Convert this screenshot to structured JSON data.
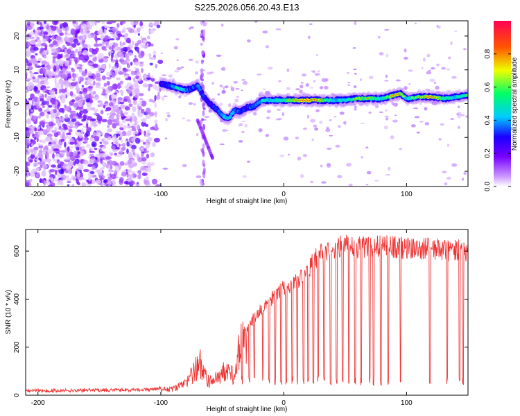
{
  "title": "S225.2026.056.20.43.E13",
  "chart_data": [
    {
      "type": "heatmap",
      "name": "spectrogram",
      "title": "S225.2026.056.20.43.E13",
      "xlabel": "Height of straight line (km)",
      "ylabel": "Frequency (Hz)",
      "xlim": [
        -210,
        150
      ],
      "ylim": [
        -24.5,
        24.5
      ],
      "xticks": [
        -200,
        -100,
        0,
        100
      ],
      "yticks": [
        -20,
        -10,
        0,
        10,
        20
      ],
      "colorbar": {
        "label": "Normalized spectral amplitude",
        "range": [
          0,
          1
        ],
        "ticks": [
          0.0,
          0.2,
          0.4,
          0.6,
          0.8
        ],
        "tick_labels": [
          "0.0",
          "0.2",
          "0.4",
          "0.6",
          "0.8"
        ],
        "colors": [
          "#ffffff",
          "#cc99ff",
          "#7700ff",
          "#1a00ff",
          "#00ccff",
          "#00ff66",
          "#eeff00",
          "#ff5500",
          "#ff0055"
        ]
      },
      "ridge": {
        "description": "signal frequency track vs height",
        "x": [
          -100,
          -95,
          -90,
          -85,
          -80,
          -75,
          -70,
          -65,
          -60,
          -55,
          -50,
          -45,
          -40,
          -35,
          -30,
          -25,
          -20,
          -15,
          -10,
          -5,
          0,
          10,
          20,
          30,
          40,
          50,
          60,
          70,
          80,
          90,
          95,
          100,
          110,
          120,
          130,
          140,
          150
        ],
        "y": [
          6.0,
          5.5,
          5.0,
          4.5,
          4.0,
          4.5,
          5.5,
          2.0,
          0.0,
          -1.5,
          -3.5,
          -4.5,
          -2.0,
          -2.5,
          -1.0,
          -1.0,
          0.5,
          1.0,
          1.0,
          1.0,
          1.0,
          1.0,
          1.0,
          1.0,
          1.0,
          1.0,
          1.5,
          1.5,
          1.5,
          2.5,
          3.0,
          1.5,
          2.0,
          2.0,
          1.5,
          2.0,
          2.5
        ],
        "amplitude": [
          0.35,
          0.4,
          0.55,
          0.65,
          0.5,
          0.45,
          0.5,
          0.4,
          0.35,
          0.45,
          0.55,
          0.6,
          0.5,
          0.45,
          0.4,
          0.5,
          0.55,
          0.6,
          0.6,
          0.65,
          0.7,
          0.85,
          0.9,
          0.8,
          0.6,
          0.6,
          0.75,
          0.8,
          0.6,
          0.9,
          0.85,
          0.6,
          0.75,
          0.9,
          0.7,
          0.6,
          0.7
        ]
      },
      "descending_streak": {
        "x": [
          -70,
          -58
        ],
        "y": [
          -5,
          -16
        ]
      }
    },
    {
      "type": "line",
      "name": "snr",
      "xlabel": "Height of straight line (km)",
      "ylabel": "SNR (10 * v/v)",
      "xlim": [
        -210,
        150
      ],
      "ylim": [
        0,
        690
      ],
      "xticks": [
        -200,
        -100,
        0,
        100
      ],
      "yticks": [
        0,
        200,
        400,
        600
      ],
      "color": "#ee3333",
      "envelope": {
        "x": [
          -210,
          -110,
          -90,
          -80,
          -72,
          -68,
          -65,
          -60,
          -50,
          -40,
          -35,
          -30,
          -20,
          -10,
          0,
          10,
          20,
          25,
          30,
          40,
          50,
          60,
          80,
          100,
          120,
          150
        ],
        "y": [
          20,
          25,
          40,
          70,
          150,
          210,
          130,
          80,
          140,
          120,
          330,
          300,
          380,
          430,
          480,
          510,
          560,
          610,
          630,
          660,
          670,
          665,
          670,
          660,
          655,
          650
        ]
      },
      "dropouts": [
        -34,
        -28,
        -24,
        -17,
        -12,
        -7,
        -2,
        2,
        7,
        11,
        16,
        20,
        24,
        28,
        33,
        38,
        43,
        48,
        53,
        58,
        63,
        70,
        73,
        79,
        85,
        95,
        119,
        133,
        143,
        146
      ]
    }
  ]
}
